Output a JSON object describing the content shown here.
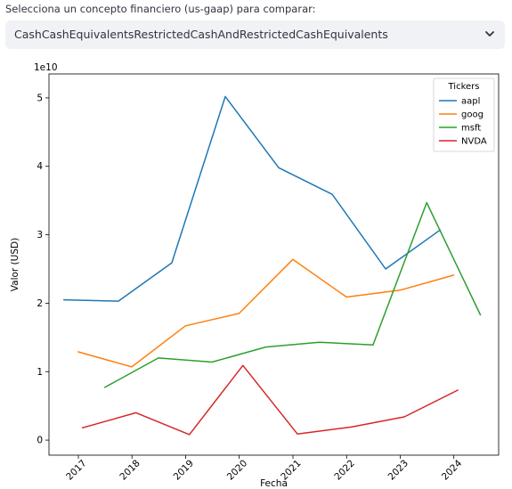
{
  "selector": {
    "label": "Selecciona un concepto financiero (us-gaap) para comparar:",
    "value": "CashCashEquivalentsRestrictedCashAndRestrictedCashEquivalents",
    "chevron_icon": "chevron-down-icon"
  },
  "chart_data": {
    "type": "line",
    "xlabel": "Fecha",
    "ylabel": "Valor (USD)",
    "y_scale_label": "1e10",
    "y_ticks": [
      0,
      1,
      2,
      3,
      4,
      5
    ],
    "x_ticks": [
      "2017",
      "2018",
      "2019",
      "2020",
      "2021",
      "2022",
      "2023",
      "2024"
    ],
    "xlim": [
      "2016-06-15",
      "2024-11-01"
    ],
    "ylim": [
      -0.22,
      5.35
    ],
    "grid": false,
    "legend_title": "Tickers",
    "legend_position": "top-right",
    "series": [
      {
        "name": "aapl",
        "color": "#1f77b4",
        "x": [
          "2016-09-24",
          "2017-09-30",
          "2018-09-29",
          "2019-09-28",
          "2020-09-26",
          "2021-09-25",
          "2022-09-24",
          "2023-09-30"
        ],
        "y": [
          2.05,
          2.03,
          2.59,
          5.02,
          3.98,
          3.59,
          2.5,
          3.07
        ]
      },
      {
        "name": "goog",
        "color": "#ff7f0e",
        "x": [
          "2016-12-31",
          "2017-12-31",
          "2018-12-31",
          "2019-12-31",
          "2020-12-31",
          "2021-12-31",
          "2022-12-31",
          "2023-12-31"
        ],
        "y": [
          1.29,
          1.07,
          1.67,
          1.85,
          2.64,
          2.09,
          2.19,
          2.41
        ]
      },
      {
        "name": "msft",
        "color": "#2ca02c",
        "x": [
          "2017-06-30",
          "2018-06-30",
          "2019-06-30",
          "2020-06-30",
          "2021-06-30",
          "2022-06-30",
          "2023-06-30",
          "2024-06-30"
        ],
        "y": [
          0.77,
          1.2,
          1.14,
          1.36,
          1.43,
          1.39,
          3.47,
          1.83
        ]
      },
      {
        "name": "NVDA",
        "color": "#d62728",
        "x": [
          "2017-01-29",
          "2018-01-28",
          "2019-01-27",
          "2020-01-26",
          "2021-01-31",
          "2022-01-30",
          "2023-01-29",
          "2024-01-28"
        ],
        "y": [
          0.18,
          0.4,
          0.08,
          1.09,
          0.09,
          0.19,
          0.34,
          0.73
        ]
      }
    ]
  }
}
